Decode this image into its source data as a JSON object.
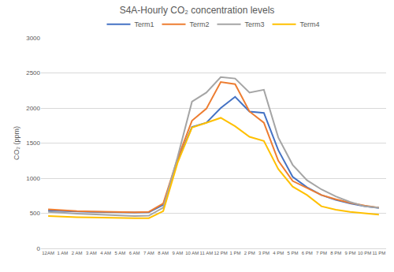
{
  "chart_data": {
    "type": "line",
    "title": "S4A-Hourly CO₂ concentration levels",
    "y_label": "CO₂ (ppm)",
    "categories": [
      "12AM",
      "1 AM",
      "2 AM",
      "3 AM",
      "4 AM",
      "5 AM",
      "6 AM",
      "7 AM",
      "8 AM",
      "9 AM",
      "10 AM",
      "11 AM",
      "12 PM",
      "1 PM",
      "2 PM",
      "3 PM",
      "4 PM",
      "5 PM",
      "6 PM",
      "7 PM",
      "8 PM",
      "9 PM",
      "10 PM",
      "11 PM"
    ],
    "series": [
      {
        "name": "Term1",
        "color": "#4472c4",
        "values": [
          540,
          530,
          525,
          520,
          515,
          510,
          510,
          515,
          620,
          1250,
          1730,
          1790,
          2000,
          2160,
          1950,
          1930,
          1400,
          1020,
          870,
          760,
          690,
          640,
          600,
          575
        ]
      },
      {
        "name": "Term2",
        "color": "#ed7d31",
        "values": [
          555,
          540,
          530,
          525,
          520,
          515,
          515,
          520,
          640,
          1280,
          1820,
          1990,
          2370,
          2340,
          1950,
          1790,
          1250,
          960,
          860,
          760,
          700,
          650,
          610,
          580
        ]
      },
      {
        "name": "Term3",
        "color": "#a5a5a5",
        "values": [
          520,
          505,
          495,
          485,
          475,
          465,
          460,
          465,
          580,
          1300,
          2090,
          2220,
          2440,
          2420,
          2220,
          2260,
          1580,
          1190,
          970,
          840,
          740,
          660,
          600,
          580
        ]
      },
      {
        "name": "Term4",
        "color": "#ffc000",
        "values": [
          460,
          450,
          445,
          440,
          435,
          430,
          430,
          430,
          530,
          1220,
          1720,
          1790,
          1860,
          1740,
          1590,
          1530,
          1130,
          880,
          760,
          600,
          550,
          520,
          500,
          480
        ]
      }
    ],
    "ylim": [
      0,
      3000
    ],
    "yticks": [
      0,
      500,
      1000,
      1500,
      2000,
      2500,
      3000
    ],
    "grid": true,
    "legend": "top"
  }
}
